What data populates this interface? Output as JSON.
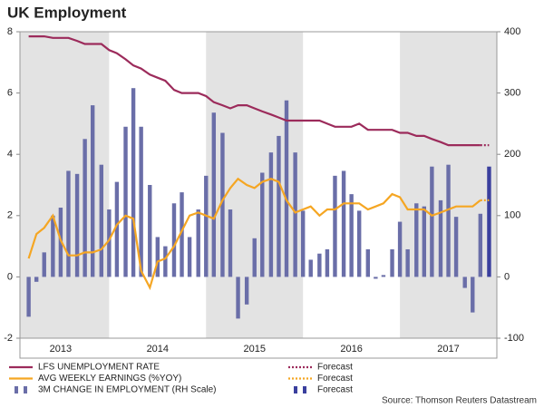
{
  "chart_data": {
    "type": "combo",
    "title": "UK Employment",
    "source": "Source: Thomson Reuters Datastream",
    "xlim": [
      2013.08,
      2018.0
    ],
    "xticks": [
      {
        "value": 2013.5,
        "label": "2013"
      },
      {
        "value": 2014.5,
        "label": "2014"
      },
      {
        "value": 2015.5,
        "label": "2015"
      },
      {
        "value": 2016.5,
        "label": "2016"
      },
      {
        "value": 2017.5,
        "label": "2017"
      }
    ],
    "ylim": [
      -2,
      8
    ],
    "yticks": [
      -2,
      0,
      2,
      4,
      6,
      8
    ],
    "y2lim": [
      -100,
      400
    ],
    "y2ticks": [
      -100,
      0,
      100,
      200,
      300,
      400
    ],
    "grid": false,
    "x": [
      2013.17,
      2013.25,
      2013.33,
      2013.42,
      2013.5,
      2013.58,
      2013.67,
      2013.75,
      2013.83,
      2013.92,
      2014.0,
      2014.08,
      2014.17,
      2014.25,
      2014.33,
      2014.42,
      2014.5,
      2014.58,
      2014.67,
      2014.75,
      2014.83,
      2014.92,
      2015.0,
      2015.08,
      2015.17,
      2015.25,
      2015.33,
      2015.42,
      2015.5,
      2015.58,
      2015.67,
      2015.75,
      2015.83,
      2015.92,
      2016.0,
      2016.08,
      2016.17,
      2016.25,
      2016.33,
      2016.42,
      2016.5,
      2016.58,
      2016.67,
      2016.75,
      2016.83,
      2016.92,
      2017.0,
      2017.08,
      2017.17,
      2017.25,
      2017.33,
      2017.42,
      2017.5,
      2017.58,
      2017.67,
      2017.75,
      2017.83
    ],
    "series": [
      {
        "name": "LFS UNEMPLOYMENT RATE",
        "type": "line",
        "color": "#9c2b5b",
        "values": [
          7.85,
          7.85,
          7.85,
          7.8,
          7.8,
          7.8,
          7.7,
          7.6,
          7.6,
          7.6,
          7.4,
          7.3,
          7.1,
          6.9,
          6.8,
          6.6,
          6.5,
          6.4,
          6.1,
          6.0,
          6.0,
          6.0,
          5.9,
          5.7,
          5.6,
          5.5,
          5.6,
          5.6,
          5.5,
          5.4,
          5.3,
          5.2,
          5.1,
          5.1,
          5.1,
          5.1,
          5.1,
          5.0,
          4.9,
          4.9,
          4.9,
          5.0,
          4.8,
          4.8,
          4.8,
          4.8,
          4.7,
          4.7,
          4.6,
          4.6,
          4.5,
          4.4,
          4.3,
          4.3,
          4.3,
          4.3,
          4.3
        ]
      },
      {
        "name": "AVG WEEKLY EARNINGS (%YOY)",
        "type": "line",
        "color": "#f5a623",
        "values": [
          0.6,
          1.4,
          1.6,
          2.0,
          1.2,
          0.7,
          0.7,
          0.8,
          0.8,
          0.9,
          1.2,
          1.7,
          2.0,
          1.9,
          0.2,
          -0.35,
          0.5,
          0.6,
          1.0,
          1.5,
          2.0,
          2.1,
          2.0,
          1.9,
          2.5,
          2.9,
          3.2,
          3.0,
          2.9,
          3.1,
          3.2,
          3.1,
          2.5,
          2.1,
          2.2,
          2.3,
          2.0,
          2.2,
          2.2,
          2.4,
          2.4,
          2.4,
          2.2,
          2.3,
          2.4,
          2.7,
          2.6,
          2.2,
          2.2,
          2.2,
          2.0,
          2.1,
          2.2,
          2.3,
          2.3,
          2.3,
          2.5
        ]
      },
      {
        "name": "3M CHANGE IN EMPLOYMENT (RH Scale)",
        "type": "bar",
        "axis": "y2",
        "color": "#6a6ea8",
        "values": [
          -65,
          -8,
          40,
          100,
          113,
          173,
          168,
          225,
          280,
          183,
          110,
          155,
          245,
          308,
          245,
          150,
          65,
          50,
          120,
          138,
          65,
          110,
          165,
          268,
          235,
          110,
          -68,
          -45,
          63,
          170,
          203,
          230,
          288,
          203,
          108,
          28,
          38,
          45,
          165,
          173,
          135,
          108,
          45,
          -3,
          3,
          45,
          90,
          45,
          120,
          115,
          180,
          125,
          183,
          98,
          -18,
          -58,
          103
        ]
      },
      {
        "name": "Forecast",
        "type": "line",
        "dashed": true,
        "color": "#9c2b5b",
        "x": [
          2017.83,
          2017.92
        ],
        "values": [
          4.3,
          4.3
        ]
      },
      {
        "name": "Forecast",
        "type": "line",
        "dashed": true,
        "color": "#f5a623",
        "x": [
          2017.83,
          2017.92
        ],
        "values": [
          2.5,
          2.5
        ]
      },
      {
        "name": "Forecast",
        "type": "bar",
        "axis": "y2",
        "color": "#3a3f9e",
        "x": [
          2017.92
        ],
        "values": [
          180
        ]
      }
    ]
  }
}
